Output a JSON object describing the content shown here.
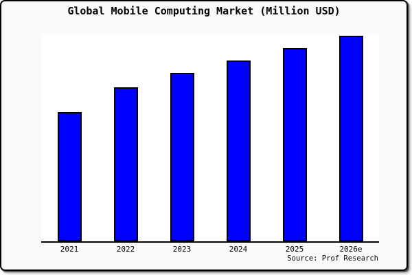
{
  "chart": {
    "title": "Global Mobile Computing Market (Million USD)",
    "source": "Source: Prof Research"
  },
  "chart_data": {
    "type": "bar",
    "title": "Global Mobile Computing Market (Million USD)",
    "categories": [
      "2021",
      "2022",
      "2023",
      "2024",
      "2025",
      "2026e"
    ],
    "values": [
      63,
      75,
      82,
      88,
      94,
      100
    ],
    "values_note": "no y-axis scale shown; values are relative bar heights with 2026e = 100",
    "xlabel": "",
    "ylabel": "",
    "ylim": [
      0,
      101
    ],
    "grid": false,
    "legend": null,
    "annotations": [
      "Source: Prof Research"
    ],
    "colors": {
      "bar_fill": "#0000ff",
      "bar_border": "#000000",
      "axis_line": "#000000",
      "plot_background": "#ffffff",
      "figure_background": "#fafafa",
      "figure_border": "#000000",
      "text": "#000000"
    }
  }
}
